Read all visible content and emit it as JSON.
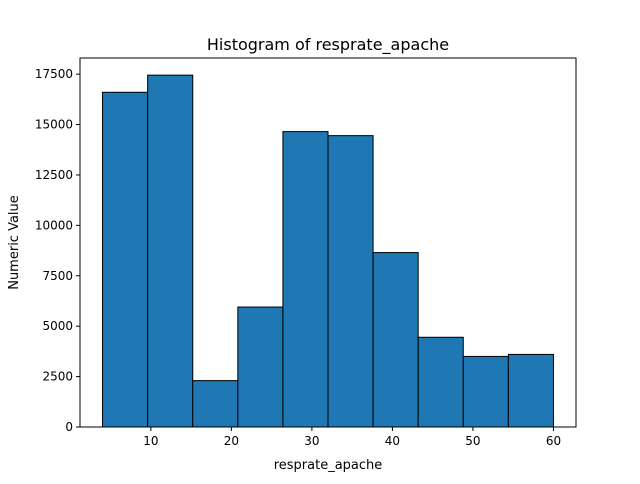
{
  "chart_data": {
    "type": "bar",
    "title": "Histogram of resprate_apache",
    "xlabel": "resprate_apache",
    "ylabel": "Numeric Value",
    "bin_edges": [
      4.0,
      9.6,
      15.2,
      20.8,
      26.4,
      32.0,
      37.6,
      43.2,
      48.8,
      54.4,
      60.0
    ],
    "values": [
      16600,
      17450,
      2300,
      5950,
      14650,
      14450,
      8650,
      4450,
      3500,
      3600
    ],
    "xlim": [
      1.2,
      62.8
    ],
    "ylim": [
      0,
      18300
    ],
    "xticks": [
      10,
      20,
      30,
      40,
      50,
      60
    ],
    "xtick_labels": [
      "10",
      "20",
      "30",
      "40",
      "50",
      "60"
    ],
    "yticks": [
      0,
      2500,
      5000,
      7500,
      10000,
      12500,
      15000,
      17500
    ],
    "ytick_labels": [
      "0",
      "2500",
      "5000",
      "7500",
      "10000",
      "12500",
      "15000",
      "17500"
    ],
    "bar_color": "#1f77b4",
    "edge_color": "#000000",
    "grid": false,
    "legend": "none"
  }
}
